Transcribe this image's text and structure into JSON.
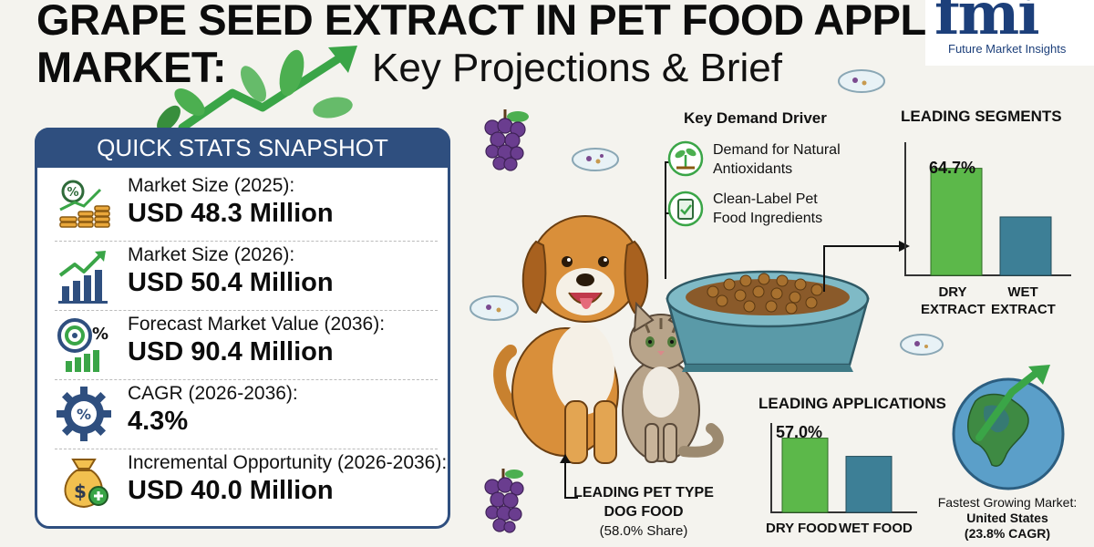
{
  "header": {
    "title_line1": "GRAPE SEED EXTRACT IN PET FOOD APPLICATION",
    "title_line2": "MARKET:",
    "subtitle": "Key Projections & Brief"
  },
  "logo": {
    "mark": "fmi",
    "name": "Future Market Insights"
  },
  "quick_stats": {
    "heading": "QUICK STATS SNAPSHOT",
    "items": [
      {
        "label": "Market Size (2025):",
        "value": "USD 48.3 Million",
        "icon": "coins-percent-icon"
      },
      {
        "label": "Market Size (2026):",
        "value": "USD 50.4 Million",
        "icon": "growth-bars-icon"
      },
      {
        "label": "Forecast Market Value (2036):",
        "value": "USD 90.4 Million",
        "icon": "target-percent-icon"
      },
      {
        "label": "CAGR (2026-2036):",
        "value": "4.3%",
        "icon": "gear-percent-icon"
      },
      {
        "label": "Incremental Opportunity (2026-2036):",
        "value": "USD 40.0 Million",
        "icon": "money-bag-icon"
      }
    ]
  },
  "demand_driver": {
    "heading": "Key Demand Driver",
    "items": [
      {
        "line1": "Demand for Natural",
        "line2": "Antioxidants",
        "icon": "sprout-icon"
      },
      {
        "line1": "Clean-Label Pet",
        "line2": "Food Ingredients",
        "icon": "clipboard-check-icon"
      }
    ]
  },
  "leading_segments": {
    "heading": "LEADING SEGMENTS",
    "value_label": "64.7%",
    "categories": [
      {
        "line1": "DRY",
        "line2": "EXTRACT"
      },
      {
        "line1": "WET",
        "line2": "EXTRACT"
      }
    ]
  },
  "leading_applications": {
    "heading": "LEADING APPLICATIONS",
    "value_label": "57.0%",
    "categories": [
      "DRY FOOD",
      "WET FOOD"
    ]
  },
  "leading_pet": {
    "heading": "LEADING PET TYPE",
    "type": "DOG FOOD",
    "share": "(58.0% Share)"
  },
  "fastest_market": {
    "line1": "Fastest Growing Market:",
    "line2": "United States",
    "line3": "(23.8% CAGR)"
  },
  "chart_data": [
    {
      "type": "bar",
      "title": "LEADING SEGMENTS",
      "categories": [
        "DRY EXTRACT",
        "WET EXTRACT"
      ],
      "values": [
        64.7,
        35.3
      ],
      "data_labels": [
        "64.7%",
        ""
      ],
      "colors": [
        "#5cb84a",
        "#3d7f96"
      ]
    },
    {
      "type": "bar",
      "title": "LEADING APPLICATIONS",
      "categories": [
        "DRY FOOD",
        "WET FOOD"
      ],
      "values": [
        57.0,
        43.0
      ],
      "data_labels": [
        "57.0%",
        ""
      ],
      "colors": [
        "#5cb84a",
        "#3d7f96"
      ]
    }
  ],
  "colors": {
    "navy": "#2f4f7f",
    "green": "#5cb84a",
    "teal": "#3d7f96",
    "background": "#f4f3ee"
  }
}
